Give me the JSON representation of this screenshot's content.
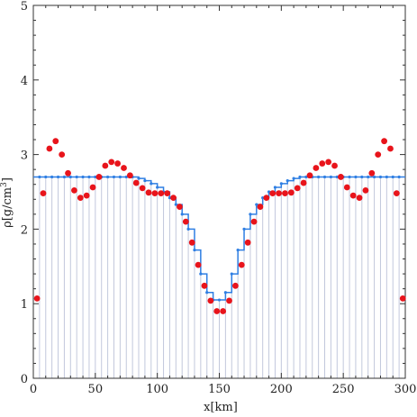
{
  "chart_data": {
    "type": "scatter",
    "title": "",
    "xlabel": "x[km]",
    "ylabel_main": "ρ[g/cm",
    "ylabel_sup": "3",
    "ylabel_close": "]",
    "xlim": [
      0,
      300
    ],
    "ylim": [
      0,
      5
    ],
    "x_ticks": [
      0,
      50,
      100,
      150,
      200,
      250,
      300
    ],
    "y_ticks": [
      0,
      1,
      2,
      3,
      4,
      5
    ],
    "grid": "vertical lines at each sample position",
    "colors": {
      "points": "#e8141b",
      "step": "#2f7fe3",
      "grid": "#c2c8dc",
      "frame": "#333333"
    },
    "series": [
      {
        "kind": "step",
        "x_edges": [
          0,
          5,
          10,
          15,
          20,
          25,
          30,
          35,
          40,
          45,
          50,
          55,
          60,
          65,
          70,
          75,
          80,
          85,
          90,
          95,
          100,
          105,
          110,
          115,
          120,
          125,
          130,
          135,
          140,
          145,
          150,
          155,
          160,
          165,
          170,
          175,
          180,
          185,
          190,
          195,
          200,
          205,
          210,
          215,
          220,
          225,
          230,
          235,
          240,
          245,
          250,
          255,
          260,
          265,
          270,
          275,
          280,
          285,
          290,
          295,
          300
        ],
        "values": [
          2.7,
          2.7,
          2.7,
          2.7,
          2.7,
          2.7,
          2.7,
          2.7,
          2.7,
          2.7,
          2.7,
          2.7,
          2.7,
          2.7,
          2.7,
          2.7,
          2.7,
          2.68,
          2.65,
          2.61,
          2.56,
          2.5,
          2.42,
          2.33,
          2.2,
          2.0,
          1.72,
          1.4,
          1.15,
          1.05,
          1.05,
          1.15,
          1.4,
          1.72,
          2.0,
          2.2,
          2.33,
          2.42,
          2.5,
          2.56,
          2.61,
          2.65,
          2.68,
          2.7,
          2.7,
          2.7,
          2.7,
          2.7,
          2.7,
          2.7,
          2.7,
          2.7,
          2.7,
          2.7,
          2.7,
          2.7,
          2.7,
          2.7,
          2.7,
          2.7
        ]
      },
      {
        "kind": "points",
        "x": [
          3,
          8,
          13,
          18,
          23,
          28,
          33,
          38,
          43,
          48,
          53,
          58,
          63,
          68,
          73,
          78,
          83,
          88,
          93,
          98,
          103,
          108,
          113,
          118,
          123,
          128,
          133,
          138,
          143,
          148,
          153,
          158,
          163,
          168,
          173,
          178,
          183,
          188,
          193,
          198,
          203,
          208,
          213,
          218,
          223,
          228,
          233,
          238,
          243,
          248,
          253,
          258,
          263,
          268,
          273,
          278,
          283,
          288,
          293,
          298
        ],
        "y": [
          1.07,
          2.48,
          3.08,
          3.18,
          3.0,
          2.75,
          2.52,
          2.42,
          2.45,
          2.56,
          2.7,
          2.85,
          2.9,
          2.88,
          2.82,
          2.72,
          2.62,
          2.55,
          2.49,
          2.48,
          2.48,
          2.48,
          2.42,
          2.3,
          2.1,
          1.82,
          1.52,
          1.24,
          1.04,
          0.9,
          0.9,
          1.04,
          1.24,
          1.52,
          1.82,
          2.1,
          2.3,
          2.42,
          2.48,
          2.48,
          2.48,
          2.49,
          2.55,
          2.62,
          2.72,
          2.82,
          2.88,
          2.9,
          2.85,
          2.7,
          2.56,
          2.45,
          2.42,
          2.52,
          2.75,
          3.0,
          3.18,
          3.08,
          2.48,
          1.07
        ]
      }
    ]
  }
}
